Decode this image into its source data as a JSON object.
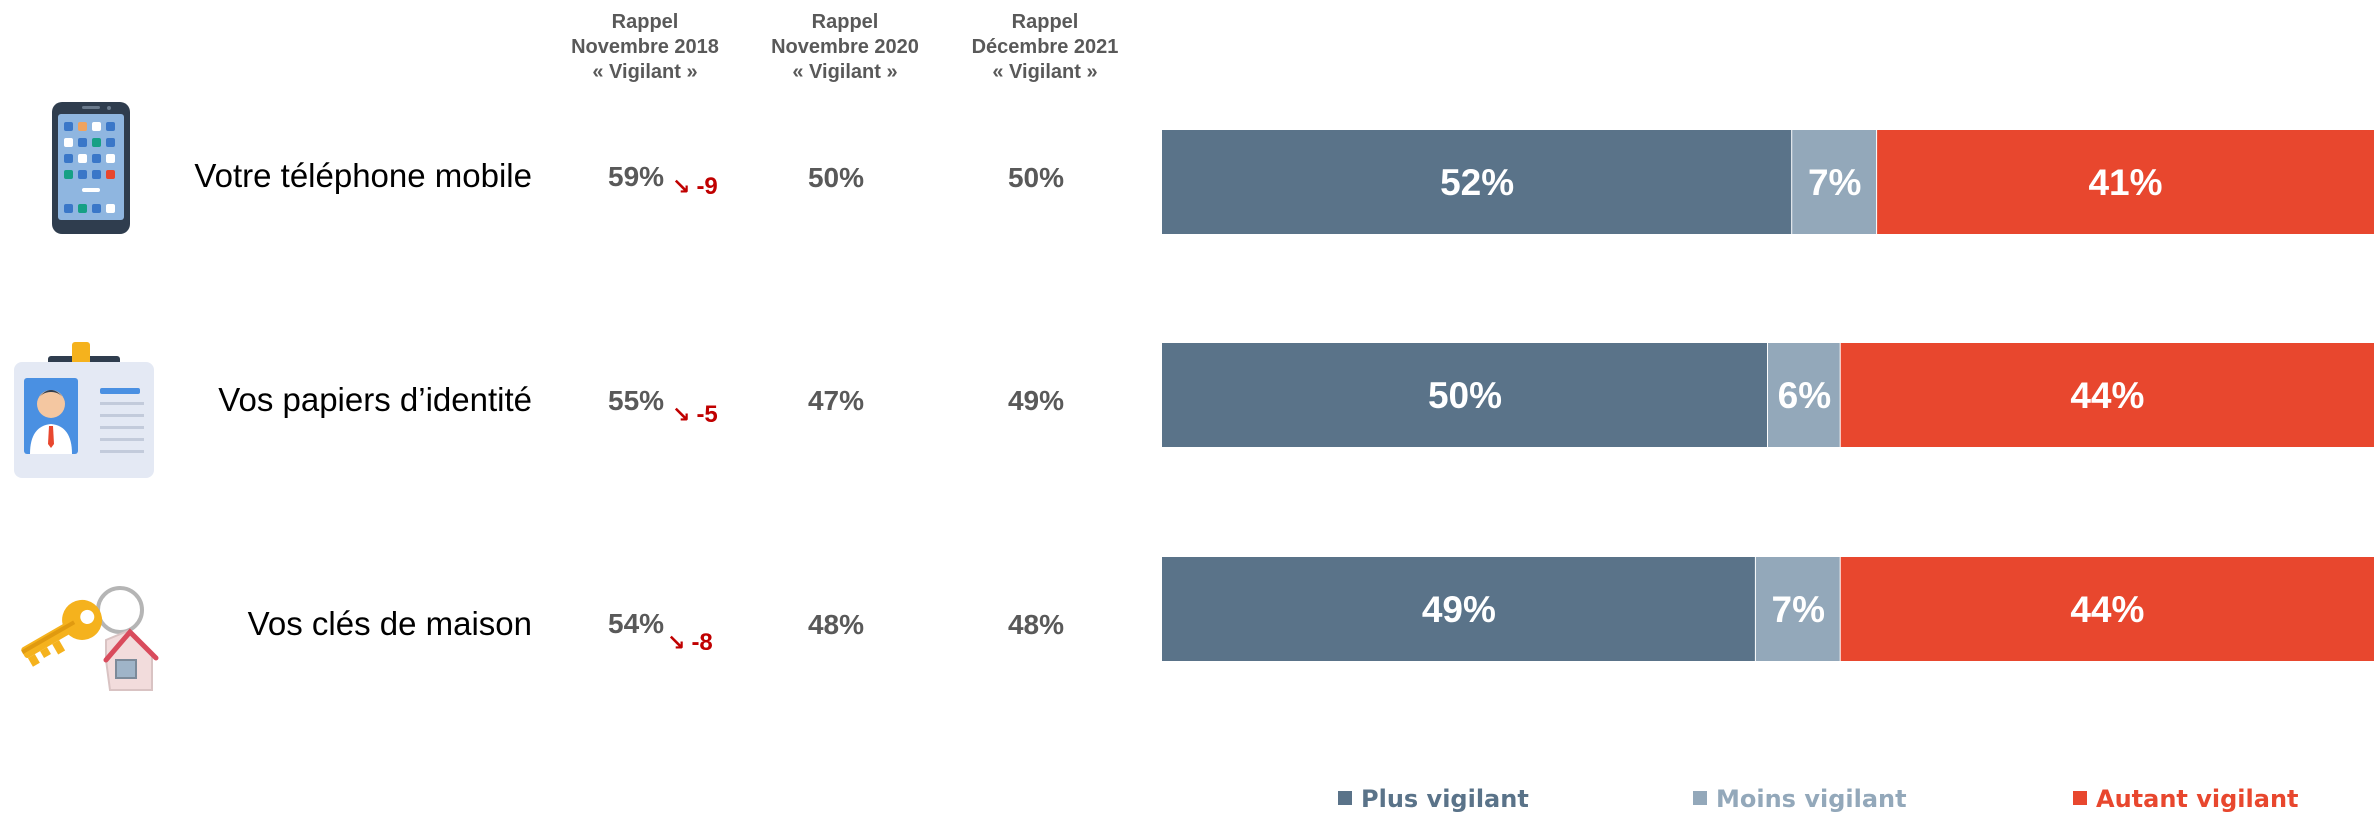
{
  "columns": [
    {
      "line1": "Rappel",
      "line2": "Novembre 2018",
      "line3": "« Vigilant »"
    },
    {
      "line1": "Rappel",
      "line2": "Novembre 2020",
      "line3": "« Vigilant »"
    },
    {
      "line1": "Rappel",
      "line2": "Décembre 2021",
      "line3": "« Vigilant »"
    }
  ],
  "rows": [
    {
      "label": "Votre téléphone mobile",
      "icon": "smartphone-icon",
      "nov2018": "59%",
      "delta": "-9",
      "nov2020": "50%",
      "dec2021": "50%"
    },
    {
      "label": "Vos papiers d’identité",
      "icon": "id-badge-icon",
      "nov2018": "55%",
      "delta": "-5",
      "nov2020": "47%",
      "dec2021": "49%"
    },
    {
      "label": "Vos clés de maison",
      "icon": "house-keys-icon",
      "nov2018": "54%",
      "delta": "-8",
      "nov2020": "48%",
      "dec2021": "48%"
    }
  ],
  "delta_arrow": "↘",
  "legend": [
    {
      "label": "Plus vigilant",
      "color": "#5a7389"
    },
    {
      "label": "Moins vigilant",
      "color": "#93a8ba"
    },
    {
      "label": "Autant vigilant",
      "color": "#e8472e"
    }
  ],
  "chart_data": {
    "type": "bar",
    "orientation": "horizontal",
    "stacked": true,
    "percent_scale": true,
    "categories": [
      "Votre téléphone mobile",
      "Vos papiers d’identité",
      "Vos clés de maison"
    ],
    "series": [
      {
        "name": "Plus vigilant",
        "color": "#5a7389",
        "values": [
          52,
          50,
          49
        ],
        "labels": [
          "52%",
          "50%",
          "49%"
        ]
      },
      {
        "name": "Moins vigilant",
        "color": "#93a8ba",
        "values": [
          7,
          6,
          7
        ],
        "labels": [
          "7%",
          "6%",
          "7%"
        ]
      },
      {
        "name": "Autant vigilant",
        "color": "#e8472e",
        "values": [
          41,
          44,
          44
        ],
        "labels": [
          "41%",
          "44%",
          "44%"
        ]
      }
    ],
    "legend_position": "bottom",
    "grid": false
  }
}
